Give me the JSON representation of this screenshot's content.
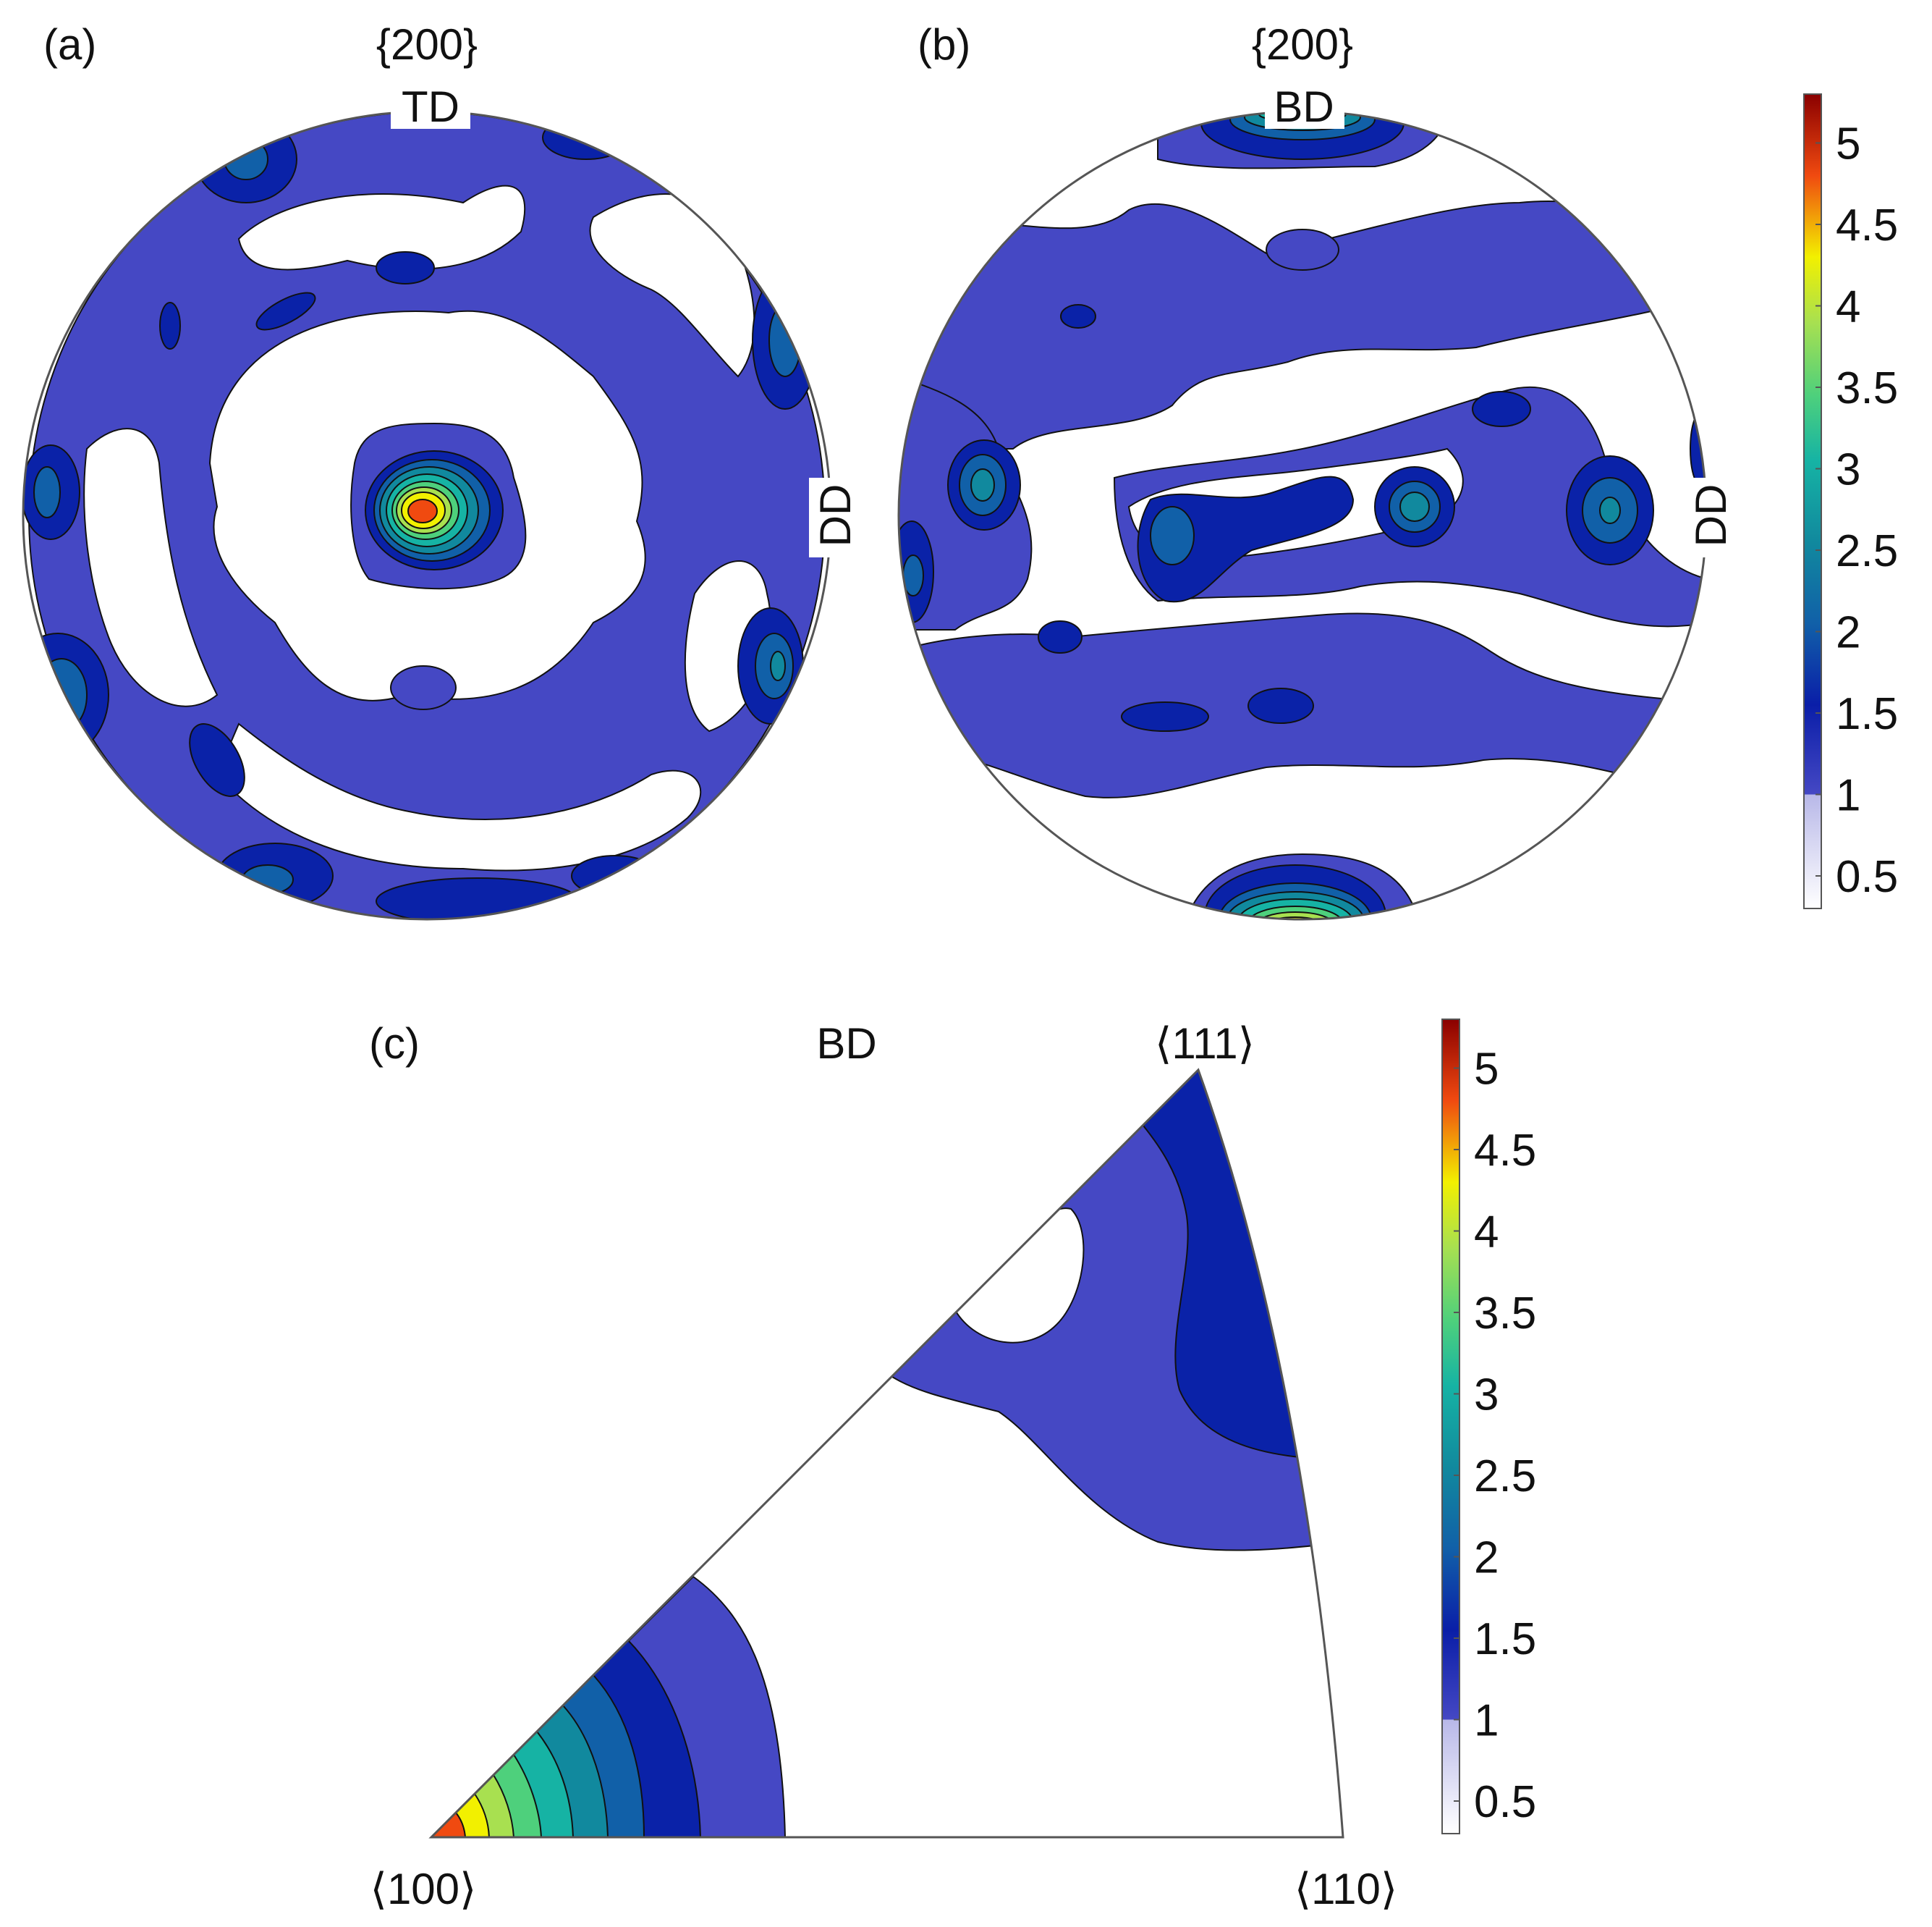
{
  "figure": {
    "panel_a": {
      "label": "(a)",
      "title": "{200}",
      "top_axis": "TD",
      "right_axis": "DD"
    },
    "panel_b": {
      "label": "(b)",
      "title": "{200}",
      "top_axis": "BD",
      "right_axis": "DD"
    },
    "panel_c": {
      "label": "(c)",
      "title": "BD",
      "corner_111": "⟨111⟩",
      "corner_100": "⟨100⟩",
      "corner_110": "⟨110⟩"
    }
  },
  "chart_data": [
    {
      "type": "heatmap",
      "title": "{200}",
      "panel": "(a)",
      "description_type": "pole figure",
      "axes": [
        "TD",
        "DD"
      ],
      "max_intensity_approx": 5.0,
      "colorbar": {
        "ticks": [
          "0.5",
          "1",
          "1.5",
          "2",
          "2.5",
          "3",
          "3.5",
          "4",
          "4.5",
          "5"
        ],
        "range": [
          0.3,
          5.3
        ]
      }
    },
    {
      "type": "heatmap",
      "title": "{200}",
      "panel": "(b)",
      "description_type": "pole figure",
      "axes": [
        "BD",
        "DD"
      ],
      "max_intensity_approx": 5.0,
      "colorbar": {
        "ticks": [
          "0.5",
          "1",
          "1.5",
          "2",
          "2.5",
          "3",
          "3.5",
          "4",
          "4.5",
          "5"
        ],
        "range": [
          0.3,
          5.3
        ]
      }
    },
    {
      "type": "heatmap",
      "title": "BD",
      "panel": "(c)",
      "description_type": "inverse pole figure",
      "corners": [
        "⟨100⟩",
        "⟨110⟩",
        "⟨111⟩"
      ],
      "max_intensity_approx": 5.0,
      "colorbar": {
        "ticks": [
          "0.5",
          "1",
          "1.5",
          "2",
          "2.5",
          "3",
          "3.5",
          "4",
          "4.5",
          "5"
        ],
        "range": [
          0.3,
          5.3
        ]
      }
    }
  ],
  "colors": {
    "level_1": "#4548c4",
    "level_1_5": "#0a22a8",
    "level_2": "#1160a8",
    "level_2_5": "#11899e",
    "level_3": "#16b3a4",
    "level_3_5": "#4ed07c",
    "level_4": "#a8e050",
    "level_4_5": "#f2f000",
    "level_5": "#f04a10",
    "max": "#8a0000"
  }
}
